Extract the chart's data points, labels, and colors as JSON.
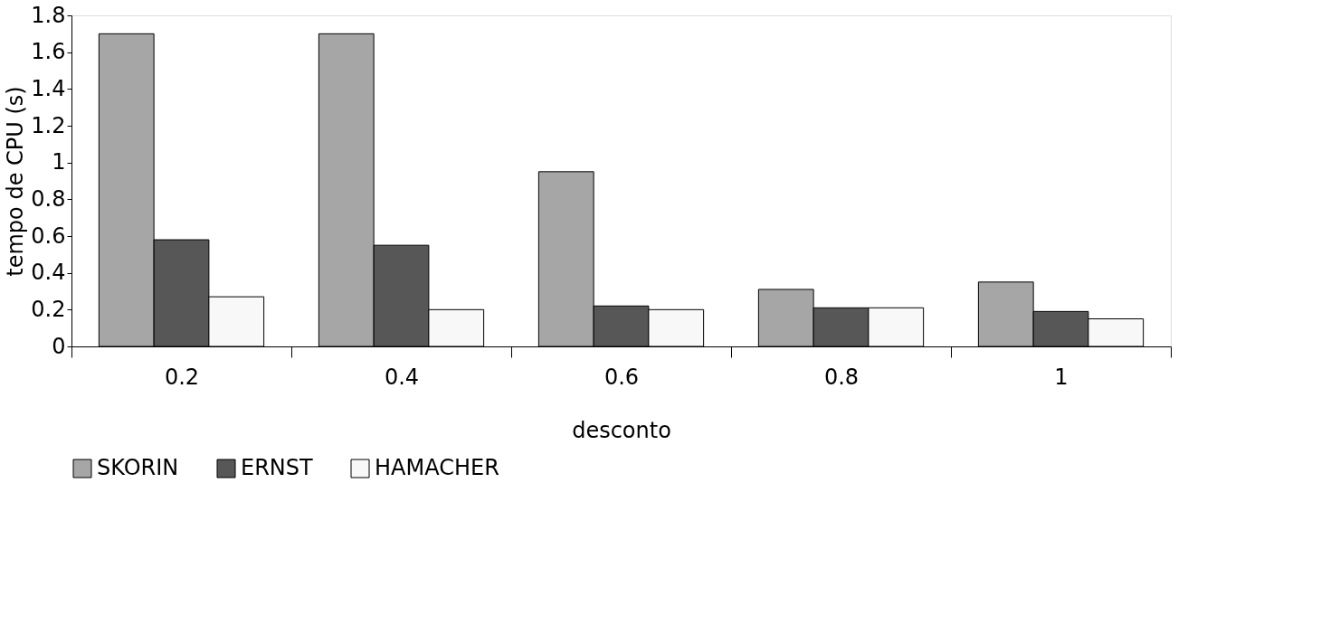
{
  "chart_data": {
    "type": "bar",
    "xlabel": "desconto",
    "ylabel": "tempo de CPU (s)",
    "categories": [
      "0.2",
      "0.4",
      "0.6",
      "0.8",
      "1"
    ],
    "series": [
      {
        "name": "SKORIN",
        "color": "#a6a6a6",
        "values": [
          1.7,
          1.7,
          0.95,
          0.31,
          0.35
        ]
      },
      {
        "name": "ERNST",
        "color": "#575757",
        "values": [
          0.58,
          0.55,
          0.22,
          0.21,
          0.19
        ]
      },
      {
        "name": "HAMACHER",
        "color": "#f8f8f8",
        "values": [
          0.27,
          0.2,
          0.2,
          0.21,
          0.15
        ]
      }
    ],
    "ylim": [
      0,
      1.8
    ],
    "yticks": [
      0,
      0.2,
      0.4,
      0.6,
      0.8,
      1,
      1.2,
      1.4,
      1.6,
      1.8
    ],
    "grid": false,
    "legend": "bottom"
  }
}
